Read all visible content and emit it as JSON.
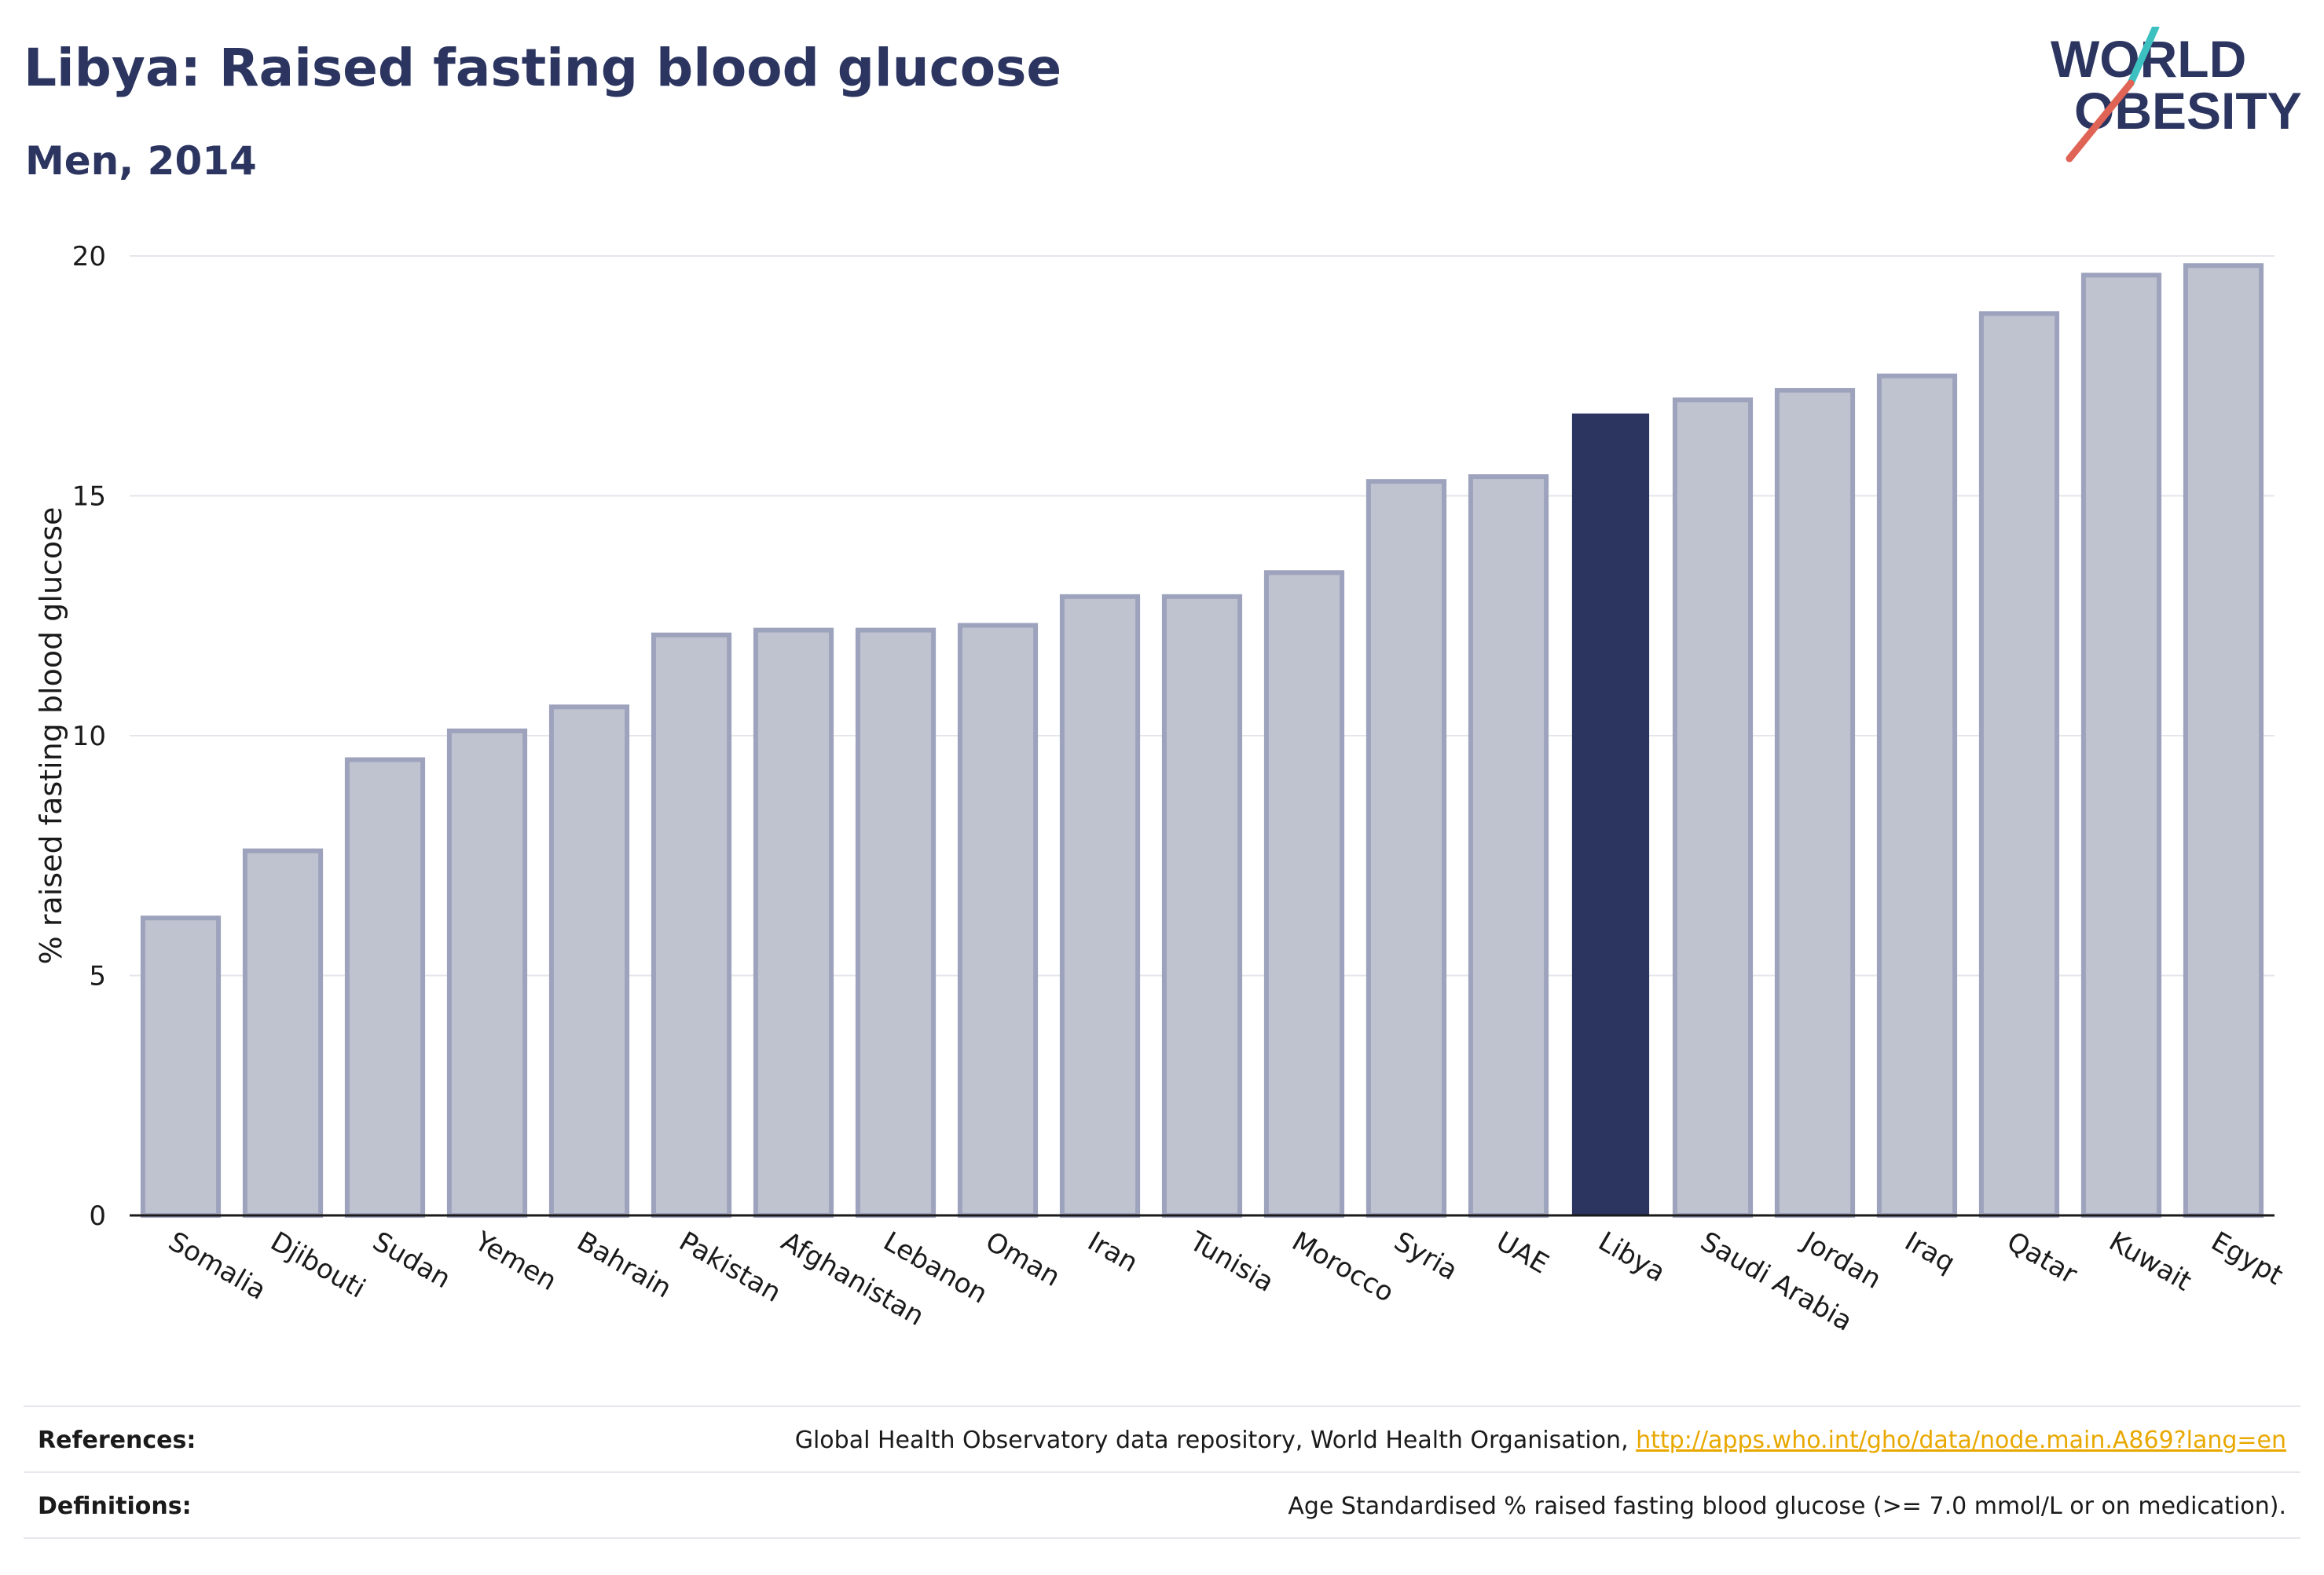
{
  "header": {
    "title": "Libya: Raised fasting blood glucose",
    "subtitle": "Men, 2014"
  },
  "logo": {
    "line1": "WORLD",
    "line2": "OBESITY",
    "accent_colors": [
      "#e06455",
      "#3cc0c0"
    ]
  },
  "chart_data": {
    "type": "bar",
    "title": "Libya: Raised fasting blood glucose",
    "subtitle": "Men, 2014",
    "xlabel": "",
    "ylabel": "% raised fasting blood glucose",
    "ylim": [
      0,
      20
    ],
    "yticks": [
      0,
      5,
      10,
      15,
      20
    ],
    "grid": true,
    "categories": [
      "Somalia",
      "Djibouti",
      "Sudan",
      "Yemen",
      "Bahrain",
      "Pakistan",
      "Afghanistan",
      "Lebanon",
      "Oman",
      "Iran",
      "Tunisia",
      "Morocco",
      "Syria",
      "UAE",
      "Libya",
      "Saudi Arabia",
      "Jordan",
      "Iraq",
      "Qatar",
      "Kuwait",
      "Egypt"
    ],
    "values": [
      6.2,
      7.6,
      9.5,
      10.1,
      10.6,
      12.1,
      12.2,
      12.2,
      12.3,
      12.9,
      12.9,
      13.4,
      15.3,
      15.4,
      16.7,
      17.0,
      17.2,
      17.5,
      18.8,
      19.6,
      19.8
    ],
    "highlight": "Libya",
    "colors": {
      "bar": "#bfc2cf",
      "bar_edge": "#9ea3bd",
      "highlight": "#2b3560",
      "grid": "#e4e6ec"
    }
  },
  "footer": {
    "references_label": "References:",
    "references_text": "Global Health Observatory data repository, World Health Organisation, ",
    "references_link": "http://apps.who.int/gho/data/node.main.A869?lang=en",
    "definitions_label": "Definitions:",
    "definitions_text": "Age Standardised % raised fasting blood glucose (>= 7.0 mmol/L or on medication)."
  }
}
